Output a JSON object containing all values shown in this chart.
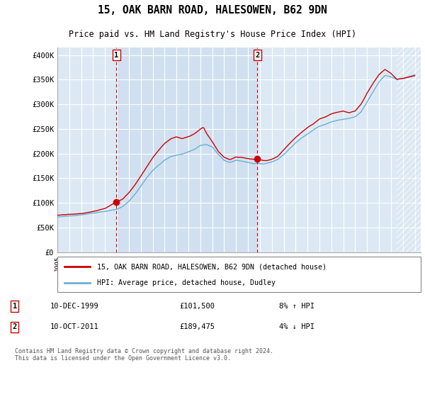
{
  "title": "15, OAK BARN ROAD, HALESOWEN, B62 9DN",
  "subtitle": "Price paid vs. HM Land Registry's House Price Index (HPI)",
  "ylabel_ticks": [
    "£0",
    "£50K",
    "£100K",
    "£150K",
    "£200K",
    "£250K",
    "£300K",
    "£350K",
    "£400K"
  ],
  "ytick_values": [
    0,
    50000,
    100000,
    150000,
    200000,
    250000,
    300000,
    350000,
    400000
  ],
  "ylim": [
    0,
    415000
  ],
  "xlim_start": 1995.0,
  "xlim_end": 2025.5,
  "background_color": "#dce9f5",
  "grid_color": "#ffffff",
  "hpi_color": "#6baed6",
  "price_color": "#cc0000",
  "shade_color": "#cfe0f0",
  "sale1_x": 1999.96,
  "sale1_y": 101500,
  "sale2_x": 2011.79,
  "sale2_y": 189475,
  "legend_line1": "15, OAK BARN ROAD, HALESOWEN, B62 9DN (detached house)",
  "legend_line2": "HPI: Average price, detached house, Dudley",
  "note1_date": "10-DEC-1999",
  "note1_price": "£101,500",
  "note1_hpi": "8% ↑ HPI",
  "note2_date": "10-OCT-2011",
  "note2_price": "£189,475",
  "note2_hpi": "4% ↓ HPI",
  "footer": "Contains HM Land Registry data © Crown copyright and database right 2024.\nThis data is licensed under the Open Government Licence v3.0."
}
